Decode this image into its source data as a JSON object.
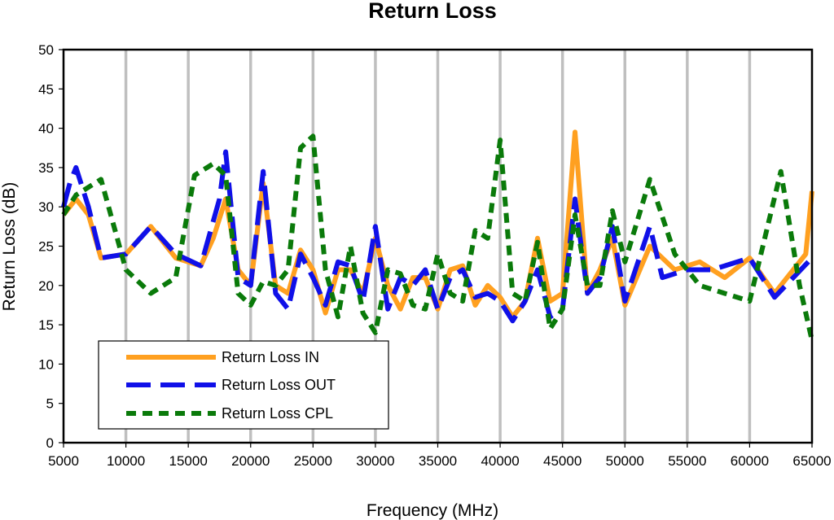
{
  "chart_data": {
    "type": "line",
    "title": "Return Loss",
    "xlabel": "Frequency (MHz)",
    "ylabel": "Return Loss (dB)",
    "xlim": [
      5000,
      65000
    ],
    "ylim": [
      0,
      50
    ],
    "x_ticks": [
      "5000",
      "10000",
      "15000",
      "20000",
      "25000",
      "30000",
      "35000",
      "40000",
      "45000",
      "50000",
      "55000",
      "60000",
      "65000"
    ],
    "y_ticks": [
      "0",
      "5",
      "10",
      "15",
      "20",
      "25",
      "30",
      "35",
      "40",
      "45",
      "50"
    ],
    "grid": "vertical",
    "legend_position": "bottom-left",
    "series": [
      {
        "name": "Return Loss IN",
        "color": "#FFA020",
        "style": "solid",
        "points": [
          [
            5000,
            29
          ],
          [
            6000,
            31
          ],
          [
            7000,
            29
          ],
          [
            8000,
            23.5
          ],
          [
            10000,
            24
          ],
          [
            12000,
            27.5
          ],
          [
            14000,
            23.5
          ],
          [
            16000,
            22.5
          ],
          [
            17000,
            26
          ],
          [
            18000,
            31
          ],
          [
            19000,
            22
          ],
          [
            20000,
            20
          ],
          [
            21000,
            33
          ],
          [
            22000,
            20
          ],
          [
            23000,
            19
          ],
          [
            24000,
            24.5
          ],
          [
            25000,
            22
          ],
          [
            26000,
            16.5
          ],
          [
            27000,
            22
          ],
          [
            28000,
            22
          ],
          [
            29000,
            19
          ],
          [
            30000,
            26
          ],
          [
            31000,
            20
          ],
          [
            32000,
            17
          ],
          [
            33000,
            21
          ],
          [
            34000,
            21
          ],
          [
            35000,
            17
          ],
          [
            36000,
            22
          ],
          [
            37000,
            22.5
          ],
          [
            38000,
            17.5
          ],
          [
            39000,
            20
          ],
          [
            40000,
            18.5
          ],
          [
            41000,
            16
          ],
          [
            42000,
            18
          ],
          [
            43000,
            26
          ],
          [
            44000,
            18
          ],
          [
            45000,
            19
          ],
          [
            46000,
            39.5
          ],
          [
            47000,
            19
          ],
          [
            48000,
            22
          ],
          [
            49000,
            26
          ],
          [
            50000,
            17.5
          ],
          [
            52000,
            25
          ],
          [
            54000,
            22
          ],
          [
            56000,
            23
          ],
          [
            58000,
            21
          ],
          [
            60000,
            23.5
          ],
          [
            62000,
            19
          ],
          [
            64500,
            24
          ],
          [
            65000,
            32
          ]
        ]
      },
      {
        "name": "Return Loss OUT",
        "color": "#1010E8",
        "style": "long-dash",
        "points": [
          [
            5000,
            30
          ],
          [
            5500,
            33
          ],
          [
            6000,
            35
          ],
          [
            7000,
            30
          ],
          [
            8000,
            23.5
          ],
          [
            10000,
            24
          ],
          [
            12000,
            27.5
          ],
          [
            14000,
            24
          ],
          [
            16000,
            22.5
          ],
          [
            17500,
            31
          ],
          [
            18000,
            37
          ],
          [
            19000,
            21
          ],
          [
            20000,
            20
          ],
          [
            21000,
            34.5
          ],
          [
            22000,
            19
          ],
          [
            23000,
            17
          ],
          [
            24000,
            24
          ],
          [
            25000,
            21
          ],
          [
            26000,
            17.5
          ],
          [
            27000,
            23
          ],
          [
            28000,
            22.5
          ],
          [
            29000,
            18
          ],
          [
            30000,
            27.5
          ],
          [
            31000,
            17
          ],
          [
            32000,
            21
          ],
          [
            33000,
            20
          ],
          [
            34000,
            22
          ],
          [
            35000,
            17
          ],
          [
            36000,
            21
          ],
          [
            37000,
            22
          ],
          [
            38000,
            18.5
          ],
          [
            39000,
            19
          ],
          [
            40000,
            18
          ],
          [
            41000,
            15.5
          ],
          [
            42000,
            18
          ],
          [
            43000,
            22
          ],
          [
            44000,
            16
          ],
          [
            45000,
            17
          ],
          [
            46000,
            31
          ],
          [
            47000,
            19
          ],
          [
            48000,
            21
          ],
          [
            49000,
            27.5
          ],
          [
            50000,
            18
          ],
          [
            52000,
            27.5
          ],
          [
            53000,
            21
          ],
          [
            55000,
            22
          ],
          [
            57000,
            22
          ],
          [
            60000,
            23.5
          ],
          [
            62000,
            18.5
          ],
          [
            65000,
            23.5
          ]
        ]
      },
      {
        "name": "Return Loss CPL",
        "color": "#0A7A0A",
        "style": "short-dash",
        "points": [
          [
            5000,
            29
          ],
          [
            6000,
            31.5
          ],
          [
            8000,
            33.5
          ],
          [
            10000,
            22
          ],
          [
            12000,
            19
          ],
          [
            14000,
            21
          ],
          [
            15500,
            34
          ],
          [
            17000,
            35.5
          ],
          [
            18000,
            34
          ],
          [
            19000,
            19
          ],
          [
            20000,
            17.5
          ],
          [
            21000,
            20.5
          ],
          [
            22000,
            20
          ],
          [
            23000,
            22
          ],
          [
            24000,
            37.5
          ],
          [
            25000,
            39
          ],
          [
            26000,
            22
          ],
          [
            27000,
            16
          ],
          [
            28000,
            25
          ],
          [
            29000,
            16.5
          ],
          [
            30000,
            14
          ],
          [
            31000,
            22
          ],
          [
            32000,
            21.5
          ],
          [
            33000,
            17.5
          ],
          [
            34000,
            17
          ],
          [
            35000,
            24
          ],
          [
            36000,
            19
          ],
          [
            37000,
            18
          ],
          [
            38000,
            27
          ],
          [
            39000,
            26
          ],
          [
            40000,
            38.5
          ],
          [
            41000,
            19
          ],
          [
            42000,
            18
          ],
          [
            43000,
            25.5
          ],
          [
            44000,
            14.5
          ],
          [
            45000,
            17
          ],
          [
            46000,
            29
          ],
          [
            47000,
            20
          ],
          [
            48000,
            20
          ],
          [
            49000,
            29.5
          ],
          [
            50000,
            23
          ],
          [
            52000,
            33.5
          ],
          [
            54000,
            24
          ],
          [
            56000,
            20
          ],
          [
            58000,
            19
          ],
          [
            60000,
            18
          ],
          [
            62500,
            34.5
          ],
          [
            64000,
            20
          ],
          [
            65000,
            13
          ]
        ]
      }
    ]
  }
}
